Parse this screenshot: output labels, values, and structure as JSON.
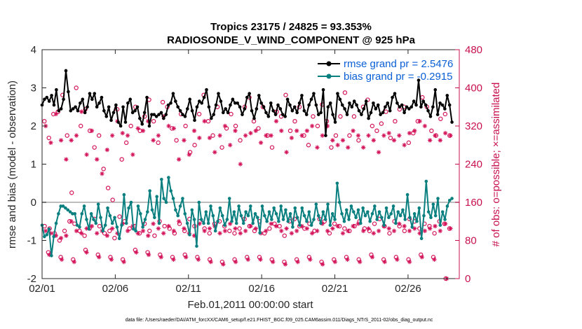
{
  "chart_data": {
    "type": "line",
    "title_line1": "Tropics 23175 / 24825 = 93.353%",
    "title_line2": "RADIOSONDE_V_WIND_COMPONENT @ 925 hPa",
    "xlabel": "Feb.01,2011 00:00:00 start",
    "ylabel": "rmse and bias (model - observation)",
    "ylabel_right": "# of obs: o=possible; ×=assimilated",
    "xlim": [
      0,
      28.5
    ],
    "ylim": [
      -2,
      4
    ],
    "ylim_right": [
      0,
      480
    ],
    "x_ticks": [
      {
        "value": 0,
        "label": "02/01"
      },
      {
        "value": 5,
        "label": "02/06"
      },
      {
        "value": 10,
        "label": "02/11"
      },
      {
        "value": 15,
        "label": "02/16"
      },
      {
        "value": 20,
        "label": "02/21"
      },
      {
        "value": 25,
        "label": "02/26"
      }
    ],
    "y_ticks": [
      {
        "value": -2,
        "label": "-2"
      },
      {
        "value": -1,
        "label": "-1"
      },
      {
        "value": 0,
        "label": "0"
      },
      {
        "value": 1,
        "label": "1"
      },
      {
        "value": 2,
        "label": "2"
      },
      {
        "value": 3,
        "label": "3"
      },
      {
        "value": 4,
        "label": "4"
      }
    ],
    "y_ticks_right": [
      {
        "value": 0,
        "label": "0"
      },
      {
        "value": 80,
        "label": "80"
      },
      {
        "value": 160,
        "label": "160"
      },
      {
        "value": 240,
        "label": "240"
      },
      {
        "value": 320,
        "label": "320"
      },
      {
        "value": 400,
        "label": "400"
      },
      {
        "value": 480,
        "label": "480"
      }
    ],
    "zero_line": 0,
    "legend_position": "top-right",
    "series": [
      {
        "name": "rmse grand pr = 2.5476",
        "color": "#000000",
        "axis": "left",
        "values": [
          2.55,
          2.7,
          2.75,
          2.65,
          2.8,
          2.55,
          2.95,
          2.4,
          2.45,
          2.7,
          3.45,
          2.9,
          2.4,
          2.45,
          2.5,
          2.4,
          2.6,
          2.7,
          2.35,
          2.5,
          2.85,
          2.7,
          2.85,
          2.5,
          2.6,
          2.75,
          2.4,
          2.25,
          2.5,
          2.15,
          2.35,
          2.55,
          2.1,
          2.0,
          2.5,
          2.1,
          2.6,
          2.7,
          2.35,
          2.4,
          2.5,
          2.2,
          2.05,
          2.35,
          2.75,
          2.0,
          2.3,
          2.3,
          2.25,
          2.3,
          2.35,
          2.2,
          2.3,
          2.55,
          2.6,
          2.85,
          2.65,
          2.5,
          2.4,
          2.3,
          2.25,
          2.45,
          2.7,
          2.4,
          2.15,
          2.5,
          2.65,
          2.6,
          2.75,
          2.95,
          2.5,
          2.2,
          2.3,
          2.55,
          2.85,
          2.65,
          2.35,
          2.45,
          2.35,
          2.55,
          2.7,
          2.6,
          2.6,
          2.5,
          2.3,
          2.45,
          2.75,
          2.85,
          2.4,
          2.2,
          2.45,
          2.8,
          2.6,
          2.5,
          2.35,
          2.25,
          2.6,
          2.4,
          2.3,
          2.55,
          2.45,
          2.3,
          2.25,
          2.7,
          2.55,
          2.4,
          2.5,
          2.35,
          2.6,
          2.8,
          2.4,
          2.3,
          2.55,
          2.7,
          2.85,
          2.55,
          2.3,
          2.35,
          2.95,
          1.75,
          2.5,
          2.6,
          2.3,
          2.1,
          2.85,
          2.7,
          2.55,
          2.45,
          2.3,
          2.6,
          2.5,
          2.65,
          2.55,
          2.4,
          2.3,
          2.45,
          2.65,
          2.2,
          2.35,
          2.6,
          2.45,
          2.55,
          2.3,
          2.35,
          2.5,
          2.6,
          2.4,
          2.75,
          2.85,
          2.6,
          2.5,
          2.55,
          2.35,
          2.5,
          2.45,
          2.5,
          2.65,
          2.55,
          3.2,
          2.5,
          2.65,
          2.55,
          2.4,
          2.25,
          2.5,
          2.95,
          2.3,
          2.6,
          2.55,
          2.45,
          2.8,
          2.55,
          2.1
        ]
      },
      {
        "name": "bias grand pr = -0.2915",
        "color": "#0a7f7f",
        "axis": "left",
        "values": [
          -0.6,
          -0.9,
          -0.85,
          -0.7,
          -1.4,
          -0.9,
          -0.55,
          -0.3,
          -0.1,
          -0.1,
          -0.15,
          -0.2,
          -0.25,
          -0.3,
          -0.3,
          -0.6,
          -0.65,
          -0.3,
          -0.1,
          -0.45,
          -0.7,
          -0.3,
          -0.45,
          -0.55,
          -0.05,
          -0.4,
          -0.75,
          -0.6,
          -0.15,
          -0.35,
          -0.55,
          -0.4,
          -0.65,
          -0.95,
          -0.6,
          0.2,
          -0.55,
          -0.15,
          0.0,
          -0.7,
          -0.75,
          -0.1,
          -0.3,
          -0.65,
          -0.45,
          -0.25,
          0.3,
          -0.2,
          -0.4,
          0.15,
          -0.55,
          0.6,
          0.1,
          0.0,
          0.65,
          0.3,
          0.1,
          -0.2,
          -0.35,
          -0.1,
          0.1,
          -0.3,
          -0.55,
          -0.85,
          -0.2,
          -0.45,
          -1.15,
          0.0,
          -0.45,
          -0.55,
          -0.25,
          -0.55,
          -0.1,
          -0.35,
          -0.75,
          -0.5,
          -0.15,
          -0.35,
          -0.6,
          -0.45,
          0.1,
          -0.5,
          -0.25,
          -0.55,
          -0.1,
          -0.35,
          -0.55,
          -0.25,
          -0.35,
          -0.1,
          -0.55,
          -0.3,
          -0.4,
          -0.8,
          -0.1,
          -0.35,
          -0.5,
          -0.25,
          -0.45,
          -0.15,
          -0.3,
          -0.5,
          -0.1,
          -0.45,
          -0.2,
          -0.5,
          -0.3,
          -0.65,
          -0.15,
          -0.4,
          -0.6,
          -0.15,
          -0.35,
          -0.5,
          -0.25,
          -0.6,
          -0.45,
          -0.05,
          -0.35,
          -0.55,
          -0.25,
          -0.45,
          -0.05,
          -0.6,
          -0.3,
          -0.45,
          0.5,
          0.0,
          -0.3,
          -0.5,
          -0.2,
          -0.45,
          -0.1,
          -0.25,
          -0.4,
          -0.2,
          -0.55,
          -0.15,
          -0.35,
          -0.25,
          -0.5,
          -0.3,
          -0.1,
          -0.45,
          -0.25,
          -0.4,
          -0.6,
          -0.15,
          -0.4,
          -0.3,
          -0.1,
          -0.55,
          -0.25,
          -0.35,
          -0.2,
          -0.45,
          0.2,
          -0.4,
          -0.65,
          -0.3,
          -0.5,
          -0.15,
          -0.95,
          -0.35,
          0.55,
          -0.25,
          -0.4,
          -0.05,
          -0.35,
          0.1,
          -0.6,
          -0.25,
          -0.45,
          -0.1,
          0.05,
          0.1
        ]
      }
    ],
    "obs_possible": [
      330,
      295,
      345,
      350,
      385,
      300,
      180,
      400,
      320,
      355,
      310,
      275,
      300,
      230,
      190,
      165,
      355,
      250,
      285,
      320,
      360,
      310,
      340,
      375,
      330,
      285,
      370,
      360,
      315,
      290,
      345,
      320,
      265,
      280,
      345,
      385,
      330,
      300,
      360,
      275,
      315,
      345,
      320,
      290,
      360,
      380,
      330,
      315,
      360,
      300,
      275,
      350,
      340,
      385,
      310,
      330,
      360,
      300,
      280,
      340,
      320,
      365,
      330,
      275,
      300,
      340,
      390,
      300,
      340,
      290,
      360,
      375,
      320,
      310,
      325,
      350,
      295,
      330,
      355,
      360,
      285,
      305,
      330,
      380,
      360,
      310,
      300,
      335,
      345,
      300
    ],
    "obs_assimilated": [
      320,
      285,
      345,
      290,
      250,
      290,
      300,
      350,
      260,
      310,
      250,
      220,
      270,
      300,
      330,
      305,
      300,
      260,
      315,
      310,
      330,
      290,
      300,
      340,
      320,
      315,
      250,
      290,
      260,
      310,
      295,
      330,
      295,
      265,
      300,
      320,
      280,
      310,
      240,
      300,
      305,
      310,
      285,
      300,
      300,
      330,
      310,
      265,
      295,
      310,
      300,
      310,
      320,
      275,
      300,
      320,
      290,
      280,
      290,
      275,
      310,
      300,
      275,
      300,
      290,
      265,
      300,
      305,
      290,
      300,
      280,
      305,
      310,
      330,
      320,
      290,
      300,
      290,
      305,
      300
    ],
    "obs_possible_low": [
      110,
      105,
      95,
      80,
      100,
      120,
      115,
      100,
      90,
      105,
      125,
      110,
      95,
      100,
      85,
      130,
      120,
      105,
      110,
      95,
      115,
      100,
      90,
      120,
      110,
      105,
      95,
      115,
      100,
      125,
      110,
      120,
      105,
      95,
      115,
      120,
      110,
      100,
      95,
      105,
      125,
      110,
      100,
      120,
      95,
      105,
      115,
      110,
      90,
      120,
      125,
      110,
      105,
      115,
      100,
      125,
      120,
      95,
      115,
      110,
      105,
      100,
      110,
      120,
      105,
      100,
      115,
      125,
      110,
      95,
      120,
      110,
      100,
      125,
      120,
      105,
      115,
      110,
      95,
      120,
      115,
      105
    ],
    "obs_assimilated_low": [
      100,
      95,
      90,
      85,
      90,
      120,
      100,
      95,
      105,
      110,
      95,
      100,
      90,
      105,
      95,
      115,
      100,
      110,
      95,
      100,
      90,
      115,
      105,
      95,
      110,
      100,
      120,
      105,
      95,
      90,
      115,
      100,
      105,
      110,
      95,
      100,
      115,
      105,
      95,
      100,
      110,
      105,
      95,
      100,
      115,
      110,
      100,
      105,
      95,
      100,
      110,
      105,
      95,
      100,
      115,
      100,
      105,
      110,
      95,
      100,
      110,
      115,
      100,
      105,
      95,
      100,
      110,
      105,
      100,
      115,
      110,
      100,
      105,
      95,
      100,
      105,
      110,
      100,
      115,
      105
    ],
    "obs_possible_bottom": [
      55,
      45,
      40,
      60,
      50,
      45,
      40,
      60,
      55,
      50,
      45,
      50,
      45,
      40,
      35,
      40,
      45,
      45,
      40,
      35,
      40,
      45,
      35,
      40,
      45,
      40,
      50,
      40,
      45,
      40,
      50,
      45,
      0
    ],
    "obs_assimilated_bottom": [
      50,
      40,
      35,
      55,
      45,
      40,
      35,
      55,
      50,
      45,
      40,
      45,
      40,
      35,
      30,
      35,
      40,
      40,
      35,
      30,
      35,
      40,
      30,
      35,
      40,
      35,
      45,
      35,
      40,
      35,
      45,
      40,
      0
    ]
  },
  "footer": "data file: /Users/raeder/DAI/ATM_forcXX/CAM6_setup/f.e21.FHIST_BGC.f09_025.CAM6assim.011/Diags_NTrS_2011-02/obs_diag_output.nc"
}
